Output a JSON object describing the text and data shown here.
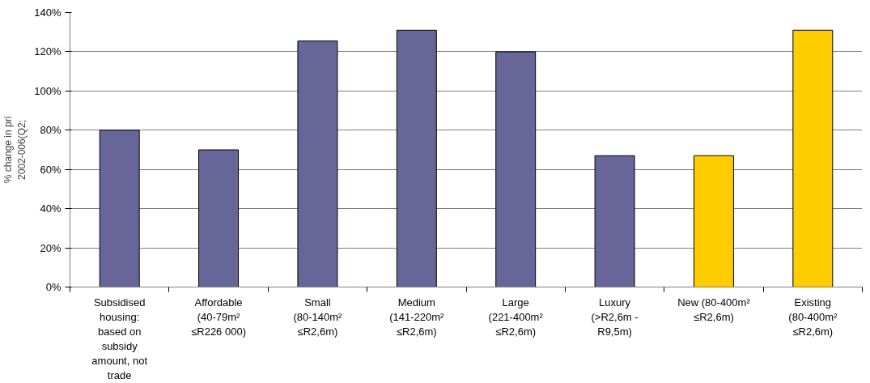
{
  "chart_data": {
    "type": "bar",
    "ylabel": "% change in pri\n2002-006(Q2;",
    "categories": [
      "Subsidised housing: based on subsidy amount, not trade",
      "Affordable (40-79m² ≤R226 000)",
      "Small (80-140m² ≤R2,6m)",
      "Medium (141-220m² ≤R2,6m)",
      "Large (221-400m² ≤R2,6m)",
      "Luxury (>R2,6m - R9,5m)",
      "New (80-400m² ≤R2,6m)",
      "Existing (80-400m² ≤R2,6m)"
    ],
    "values": [
      80,
      70,
      125.5,
      131,
      120,
      67,
      67,
      131
    ],
    "colors": [
      "#666699",
      "#666699",
      "#666699",
      "#666699",
      "#666699",
      "#666699",
      "#ffcc00",
      "#ffcc00"
    ],
    "ylim": [
      0,
      140
    ],
    "yticks": [
      {
        "value": 0,
        "label": "0%"
      },
      {
        "value": 20,
        "label": "20%"
      },
      {
        "value": 40,
        "label": "40%"
      },
      {
        "value": 60,
        "label": "60%"
      },
      {
        "value": 80,
        "label": "80%"
      },
      {
        "value": 100,
        "label": "100%"
      },
      {
        "value": 120,
        "label": "120%"
      },
      {
        "value": 140,
        "label": "140%"
      }
    ],
    "grid": "y"
  }
}
